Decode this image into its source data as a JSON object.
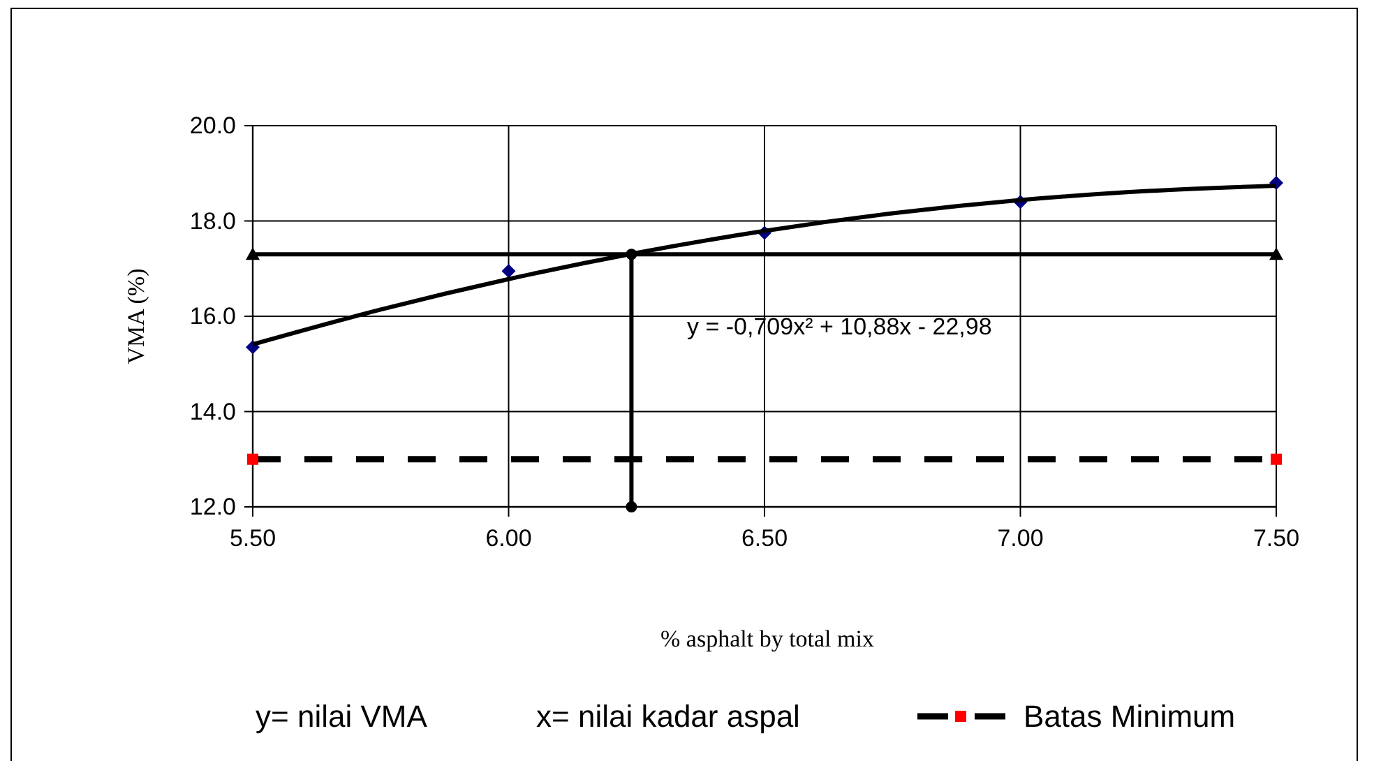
{
  "chart_data": {
    "type": "scatter",
    "xlabel": "% asphalt by total mix",
    "ylabel": "VMA (%)",
    "xlim": [
      5.5,
      7.5
    ],
    "xticks": [
      {
        "value": 5.5,
        "label": "5.50"
      },
      {
        "value": 6,
        "label": "6.00"
      },
      {
        "value": 6.5,
        "label": "6.50"
      },
      {
        "value": 7,
        "label": "7.00"
      },
      {
        "value": 7.5,
        "label": "7.50"
      }
    ],
    "ylim": [
      12,
      20
    ],
    "yticks": [
      {
        "value": 12,
        "label": "12.0"
      },
      {
        "value": 14,
        "label": "14.0"
      },
      {
        "value": 16,
        "label": "16.0"
      },
      {
        "value": 18,
        "label": "18.0"
      },
      {
        "value": 20,
        "label": "20.0"
      }
    ],
    "grid": true,
    "legend": "bottom",
    "series": [
      {
        "color": "#000080",
        "marker": "diamond",
        "x": [
          5.5,
          6,
          6.5,
          7,
          7.5
        ],
        "values": [
          15.35,
          16.95,
          17.75,
          18.4,
          18.8
        ]
      },
      {
        "type": "line",
        "color": "#000000",
        "marker": "none",
        "x": [
          5.5,
          5.75,
          6,
          6.25,
          6.5,
          6.75,
          7,
          7.25,
          7.5
        ],
        "values": [
          15.41,
          16.14,
          16.78,
          17.33,
          17.79,
          18.16,
          18.44,
          18.63,
          18.74
        ]
      },
      {
        "type": "line",
        "color": "#000000",
        "marker": "triangle",
        "x": [
          5.5,
          7.5
        ],
        "values": [
          17.3,
          17.3
        ]
      },
      {
        "type": "line",
        "color": "#000000",
        "marker": "circle",
        "x": [
          6.24,
          6.24
        ],
        "values": [
          17.3,
          12
        ]
      },
      {
        "type": "line",
        "name": "Batas Minimum",
        "color": "#000000",
        "marker": "none",
        "line_style": "dashed",
        "x": [
          5.5,
          7.5
        ],
        "values": [
          13,
          13
        ]
      },
      {
        "color": "#ff0000",
        "marker": "square",
        "x": [
          5.5,
          7.5
        ],
        "values": [
          13,
          13
        ]
      }
    ],
    "annotations": [
      "y = -0,709x² + 10,88x - 22,98",
      "y= nilai VMA",
      "x= nilai kadar aspal"
    ]
  }
}
